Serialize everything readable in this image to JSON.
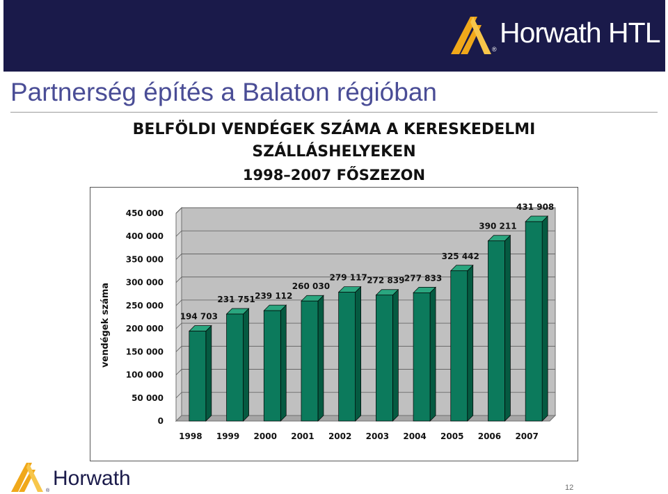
{
  "header": {
    "brand_main": "Horwath HTL",
    "brand_footer": "Horwath",
    "reg": "®"
  },
  "page": {
    "title": "Partnerség építés a Balaton régióban",
    "page_number": "12"
  },
  "colors": {
    "header_band": "#1a1a4a",
    "title": "#4a4d96",
    "bar_front": "#0c7a5c",
    "bar_side": "#055a41",
    "plot_back": "#c0c0c0",
    "logo_gold": "#f0a81a"
  },
  "chart_data": {
    "type": "bar",
    "title_lines": [
      "BELFÖLDI VENDÉGEK SZÁMA A KERESKEDELMI",
      "SZÁLLÁSHELYEKEN",
      "1998–2007 FŐSZEZON"
    ],
    "ylabel": "vendégek száma",
    "xlabel": "",
    "categories": [
      "1998",
      "1999",
      "2000",
      "2001",
      "2002",
      "2003",
      "2004",
      "2005",
      "2006",
      "2007"
    ],
    "values": [
      194703,
      231751,
      239112,
      260030,
      279117,
      272839,
      277833,
      325442,
      390211,
      431908
    ],
    "value_labels": [
      "194 703",
      "231 751",
      "239 112",
      "260 030",
      "279 117",
      "272 839",
      "277 833",
      "325 442",
      "390 211",
      "431 908"
    ],
    "ylim": [
      0,
      450000
    ],
    "yticks": [
      0,
      50000,
      100000,
      150000,
      200000,
      250000,
      300000,
      350000,
      400000,
      450000
    ],
    "ytick_labels": [
      "0",
      "50 000",
      "100 000",
      "150 000",
      "200 000",
      "250 000",
      "300 000",
      "350 000",
      "400 000",
      "450 000"
    ],
    "grid": true,
    "legend": "none",
    "three_d": true
  }
}
